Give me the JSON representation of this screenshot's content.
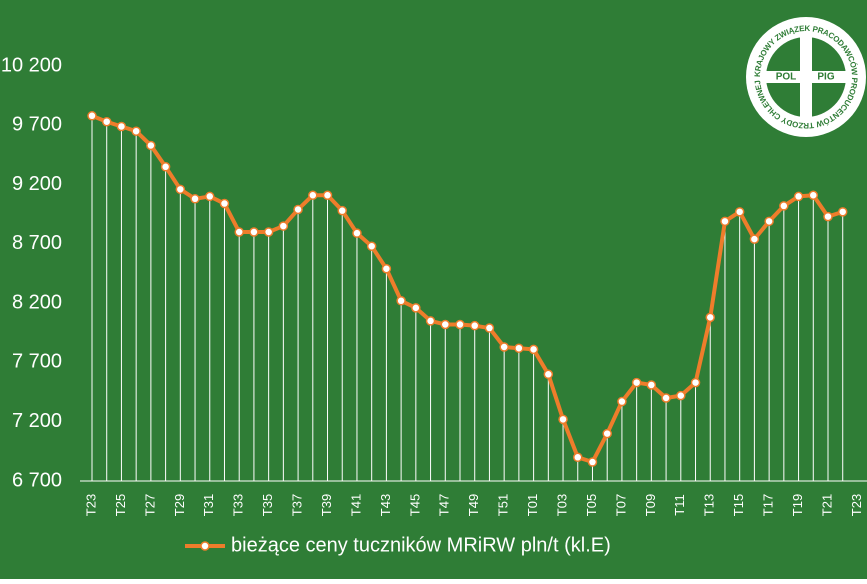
{
  "chart_data": {
    "type": "line",
    "categories": [
      "T23",
      null,
      "T25",
      null,
      "T27",
      null,
      "T29",
      null,
      "T31",
      null,
      "T33",
      null,
      "T35",
      null,
      "T37",
      null,
      "T39",
      null,
      "T41",
      null,
      "T43",
      null,
      "T45",
      null,
      "T47",
      null,
      "T49",
      null,
      "T51",
      null,
      "T01",
      null,
      "T03",
      null,
      "T05",
      null,
      "T07",
      null,
      "T09",
      null,
      "T11",
      null,
      "T13",
      null,
      "T15",
      null,
      "T17",
      null,
      "T19",
      null,
      "T21",
      null,
      "T23"
    ],
    "series": [
      {
        "name": "bieżące ceny tuczników MRiRW pln/t (kl.E)",
        "color": "#ee7d2b",
        "values": [
          9780,
          9730,
          9690,
          9650,
          9530,
          9350,
          9160,
          9080,
          9100,
          9040,
          8800,
          8800,
          8800,
          8850,
          8990,
          9110,
          9110,
          8980,
          8790,
          8680,
          8490,
          8220,
          8160,
          8050,
          8020,
          8020,
          8010,
          7990,
          7830,
          7820,
          7810,
          7600,
          7220,
          6900,
          6860,
          7100,
          7370,
          7530,
          7510,
          7400,
          7420,
          7530,
          8080,
          8890,
          8970,
          8740,
          8890,
          9020,
          9100,
          9110,
          8930,
          8970,
          null
        ]
      }
    ],
    "ylim": [
      6700,
      10200
    ],
    "yticks": [
      {
        "value": 6700,
        "label": "6 700"
      },
      {
        "value": 7200,
        "label": "7 200"
      },
      {
        "value": 7700,
        "label": "7 700"
      },
      {
        "value": 8200,
        "label": "8 200"
      },
      {
        "value": 8700,
        "label": "8 700"
      },
      {
        "value": 9200,
        "label": "9 200"
      },
      {
        "value": 9700,
        "label": "9 700"
      },
      {
        "value": 10200,
        "label": "10 200"
      }
    ],
    "grid": false,
    "legend": "bottom",
    "background": "#2f7d36"
  },
  "logo": {
    "left": "POL",
    "right": "PIG",
    "ring_top": "KRAJOWY ZWIĄZEK PRACODAWCÓW PRODUCENTÓW TRZODY CHLEWNEJ"
  }
}
